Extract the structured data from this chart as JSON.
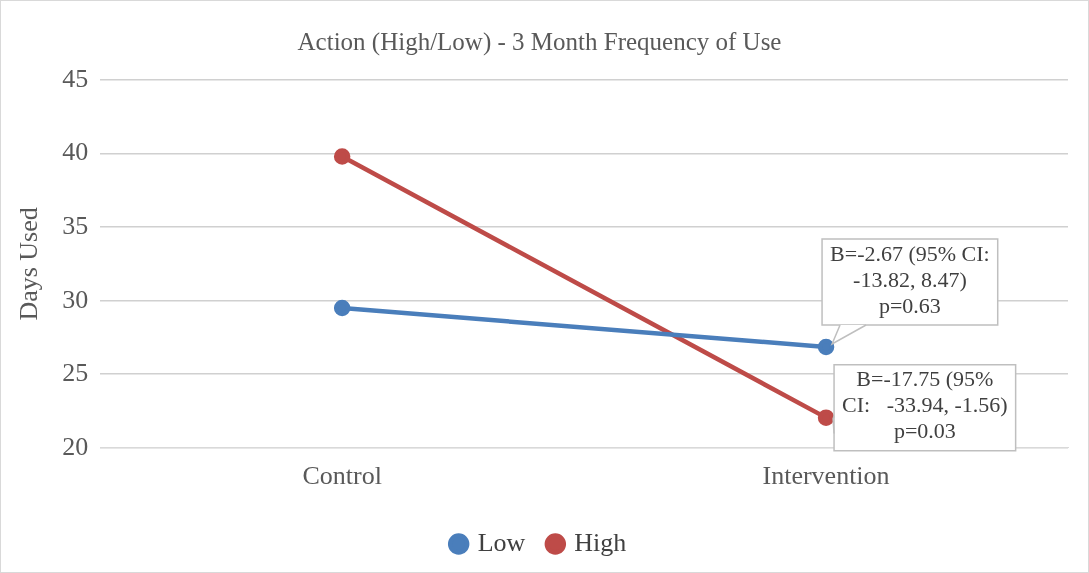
{
  "chart_data": {
    "type": "line",
    "title": "Action (High/Low) - 3 Month Frequency of Use",
    "ylabel": "Days Used",
    "categories": [
      "Control",
      "Intervention"
    ],
    "series": [
      {
        "name": "Low",
        "color": "#4a7ebb",
        "values": [
          29.5,
          26.85
        ]
      },
      {
        "name": "High",
        "color": "#be4b48",
        "values": [
          39.8,
          22.05
        ]
      }
    ],
    "ylim": [
      20,
      45
    ],
    "yticks": [
      20,
      25,
      30,
      35,
      40,
      45
    ],
    "grid": "y",
    "legend": "bottom",
    "marker": "circle",
    "annotations": [
      {
        "text": "B=-2.67 (95% CI:\n-13.82, 8.47)\np=0.63",
        "x": "Intervention",
        "y": 26.85
      },
      {
        "text": "B=-17.75 (95%\nCI:   -33.94, -1.56)\np=0.03",
        "x": "Intervention",
        "y": 22.05
      }
    ]
  }
}
